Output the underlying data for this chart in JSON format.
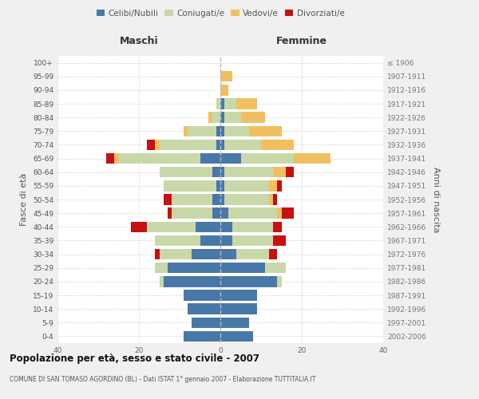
{
  "age_groups": [
    "0-4",
    "5-9",
    "10-14",
    "15-19",
    "20-24",
    "25-29",
    "30-34",
    "35-39",
    "40-44",
    "45-49",
    "50-54",
    "55-59",
    "60-64",
    "65-69",
    "70-74",
    "75-79",
    "80-84",
    "85-89",
    "90-94",
    "95-99",
    "100+"
  ],
  "birth_years": [
    "2002-2006",
    "1997-2001",
    "1992-1996",
    "1987-1991",
    "1982-1986",
    "1977-1981",
    "1972-1976",
    "1967-1971",
    "1962-1966",
    "1957-1961",
    "1952-1956",
    "1947-1951",
    "1942-1946",
    "1937-1941",
    "1932-1936",
    "1927-1931",
    "1922-1926",
    "1917-1921",
    "1912-1916",
    "1907-1911",
    "≤ 1906"
  ],
  "male_celibi": [
    9,
    7,
    8,
    9,
    14,
    13,
    7,
    5,
    6,
    2,
    2,
    1,
    2,
    5,
    1,
    1,
    0,
    0,
    0,
    0,
    0
  ],
  "male_coniugati": [
    0,
    0,
    0,
    0,
    1,
    3,
    8,
    11,
    12,
    10,
    10,
    13,
    13,
    20,
    14,
    7,
    2,
    1,
    0,
    0,
    0
  ],
  "male_vedovi": [
    0,
    0,
    0,
    0,
    0,
    0,
    0,
    0,
    0,
    0,
    0,
    0,
    0,
    1,
    1,
    1,
    1,
    0,
    0,
    0,
    0
  ],
  "male_divorziati": [
    0,
    0,
    0,
    0,
    0,
    0,
    1,
    0,
    4,
    1,
    2,
    0,
    0,
    2,
    2,
    0,
    0,
    0,
    0,
    0,
    0
  ],
  "female_nubili": [
    8,
    7,
    9,
    9,
    14,
    11,
    4,
    3,
    3,
    2,
    1,
    1,
    1,
    5,
    1,
    1,
    1,
    1,
    0,
    0,
    0
  ],
  "female_coniugate": [
    0,
    0,
    0,
    0,
    1,
    5,
    8,
    10,
    10,
    12,
    11,
    11,
    12,
    13,
    9,
    6,
    4,
    3,
    0,
    0,
    0
  ],
  "female_vedove": [
    0,
    0,
    0,
    0,
    0,
    0,
    0,
    0,
    0,
    1,
    1,
    2,
    3,
    9,
    8,
    8,
    6,
    5,
    2,
    3,
    0
  ],
  "female_divorziate": [
    0,
    0,
    0,
    0,
    0,
    0,
    2,
    3,
    2,
    3,
    1,
    1,
    2,
    0,
    0,
    0,
    0,
    0,
    0,
    0,
    0
  ],
  "color_blue": "#4878A8",
  "color_green": "#C8D8A8",
  "color_yellow": "#F0C060",
  "color_red": "#C81010",
  "xlim": 40,
  "title": "Popolazione per età, sesso e stato civile - 2007",
  "subtitle": "COMUNE DI SAN TOMASO AGORDINO (BL) - Dati ISTAT 1° gennaio 2007 - Elaborazione TUTTITALIA.IT",
  "label_maschi": "Maschi",
  "label_femmine": "Femmine",
  "ylabel_left": "Fasce di età",
  "ylabel_right": "Anni di nascita",
  "legend_labels": [
    "Celibi/Nubili",
    "Coniugati/e",
    "Vedovi/e",
    "Divorziati/e"
  ],
  "bg_color": "#f0f0f0",
  "plot_bg": "#ffffff",
  "grid_color": "#cccccc"
}
